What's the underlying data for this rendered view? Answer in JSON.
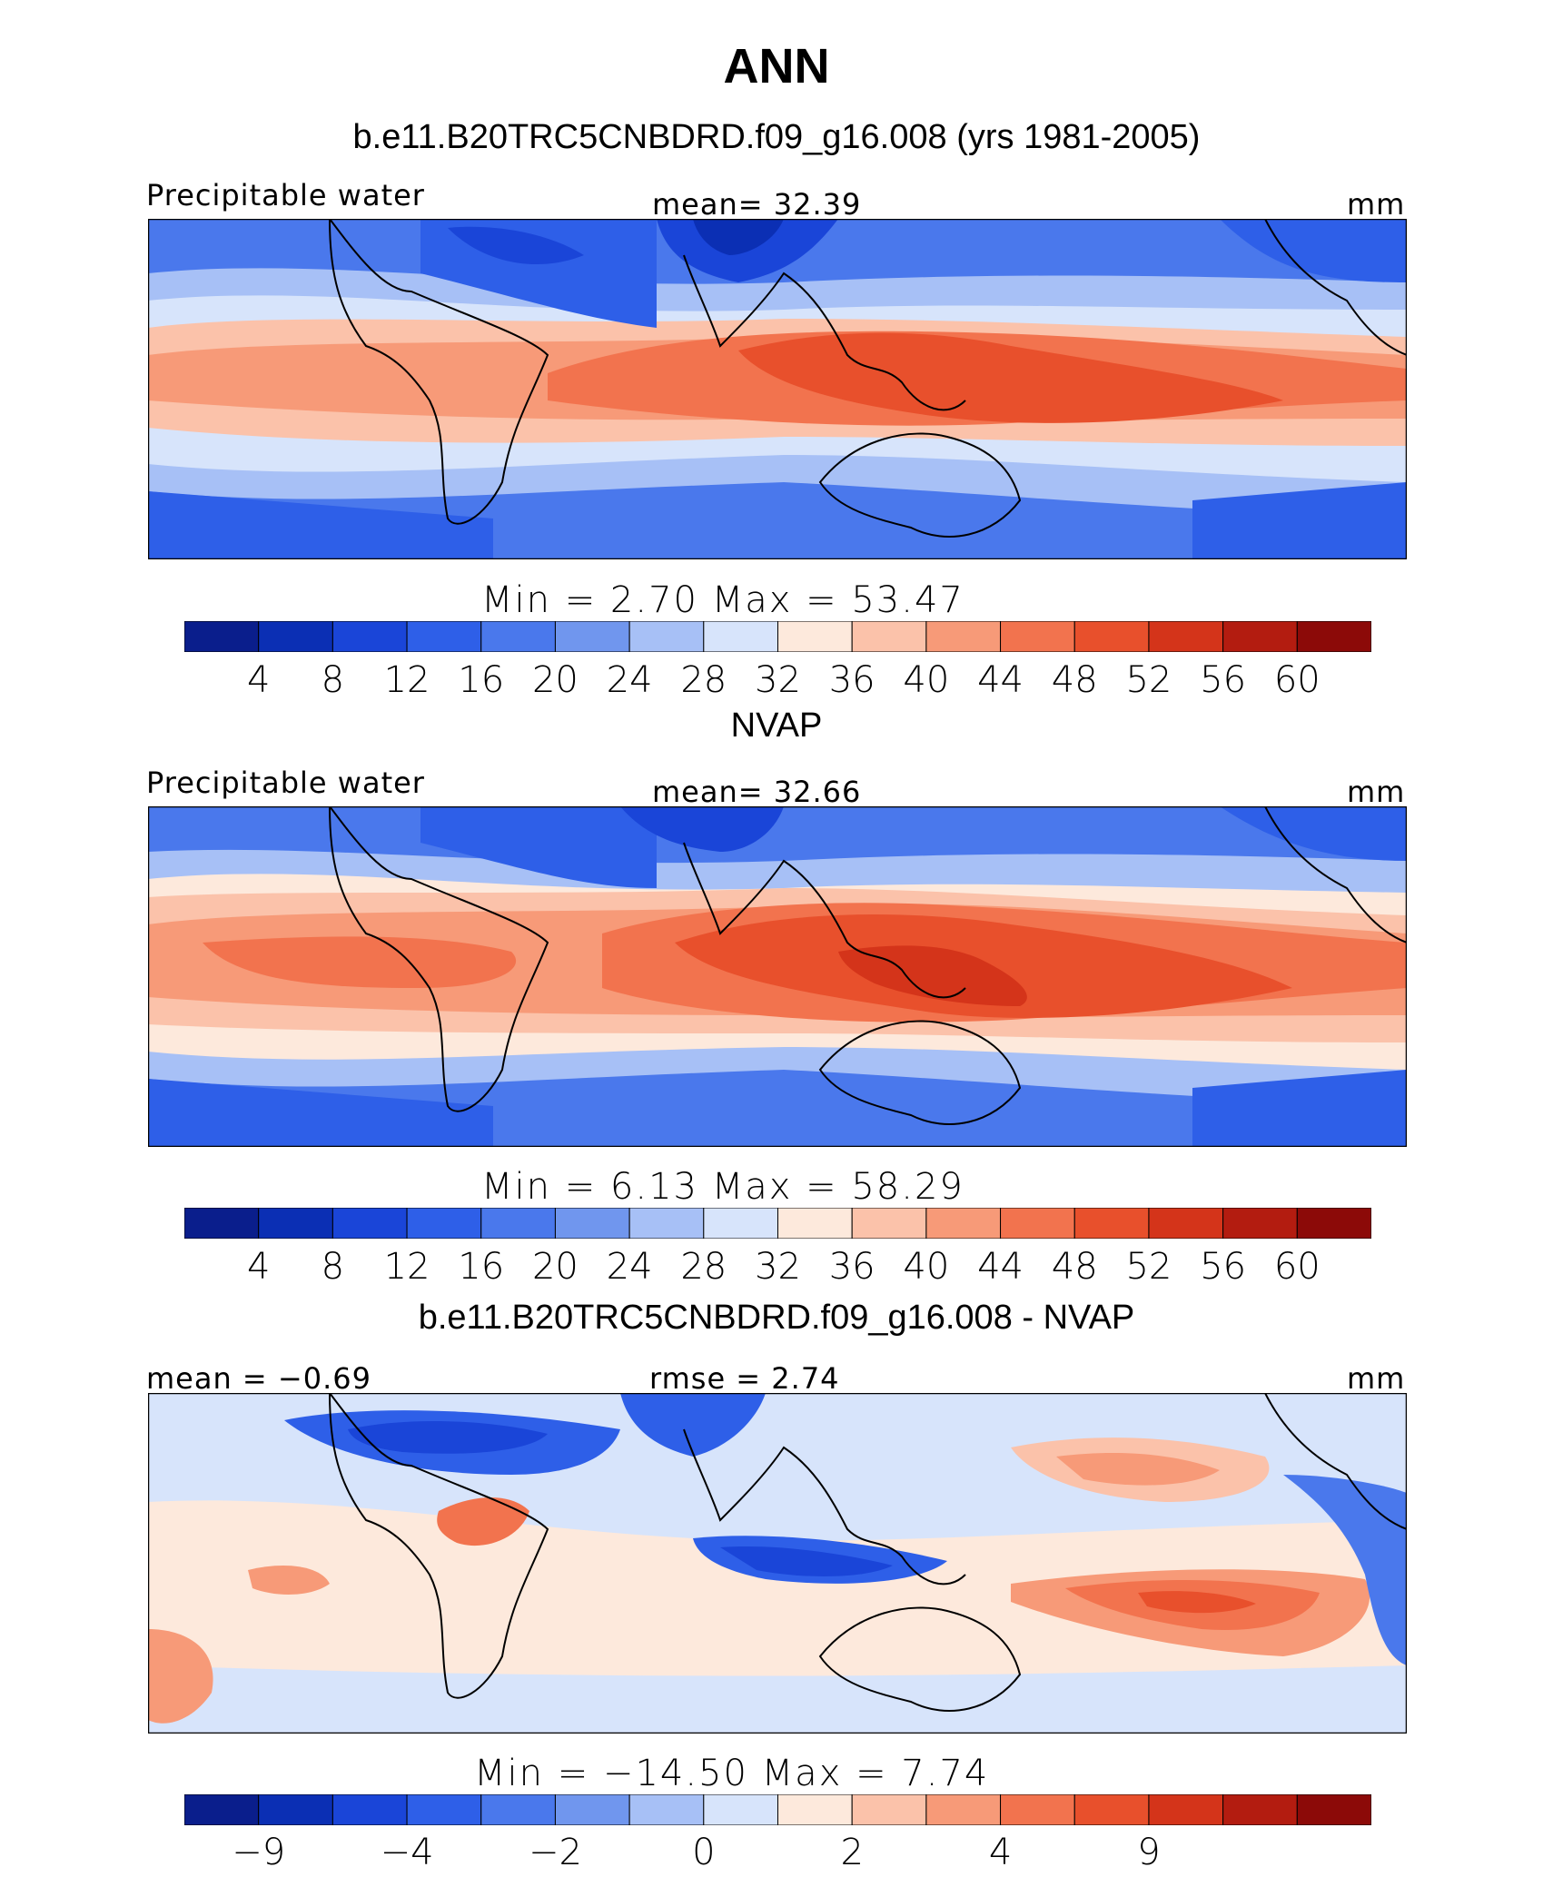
{
  "page": {
    "title": "ANN"
  },
  "panels": [
    {
      "title": "b.e11.B20TRC5CNBDRD.f09_g16.008 (yrs 1981-2005)",
      "left_label": "Precipitable water",
      "center_label": "mean=   32.39",
      "right_label": "mm",
      "minmax": "Min  =     2.70  Max  =   53.47",
      "field": "model",
      "colorbar_ticks": [
        "4",
        "8",
        "12",
        "16",
        "20",
        "24",
        "28",
        "32",
        "36",
        "40",
        "44",
        "48",
        "52",
        "56",
        "60"
      ]
    },
    {
      "title": "NVAP",
      "left_label": "Precipitable water",
      "center_label": "mean=   32.66",
      "right_label": "mm",
      "minmax": "Min  =     6.13  Max  =   58.29",
      "field": "obs",
      "colorbar_ticks": [
        "4",
        "8",
        "12",
        "16",
        "20",
        "24",
        "28",
        "32",
        "36",
        "40",
        "44",
        "48",
        "52",
        "56",
        "60"
      ]
    },
    {
      "title": "b.e11.B20TRC5CNBDRD.f09_g16.008 - NVAP",
      "left_label": "mean =  −0.69",
      "center_label": "rmse =     2.74",
      "right_label": "mm",
      "minmax": "Min  = −14.50  Max  =    7.74",
      "field": "diff",
      "colorbar_ticks": [
        "−9",
        "",
        "−4",
        "",
        "−2",
        "",
        "0",
        "",
        "2",
        "",
        "4",
        "",
        "9",
        "",
        ""
      ]
    }
  ],
  "colors": {
    "scale": [
      "#0a1e8c",
      "#0b2fb4",
      "#1a45d8",
      "#2e5fe8",
      "#4a78ec",
      "#7096ee",
      "#a7c0f6",
      "#d7e4fb",
      "#fde9dc",
      "#fbc2aa",
      "#f79a78",
      "#f2734e",
      "#e8502c",
      "#d4341a",
      "#b31c10",
      "#8c0a08"
    ]
  }
}
